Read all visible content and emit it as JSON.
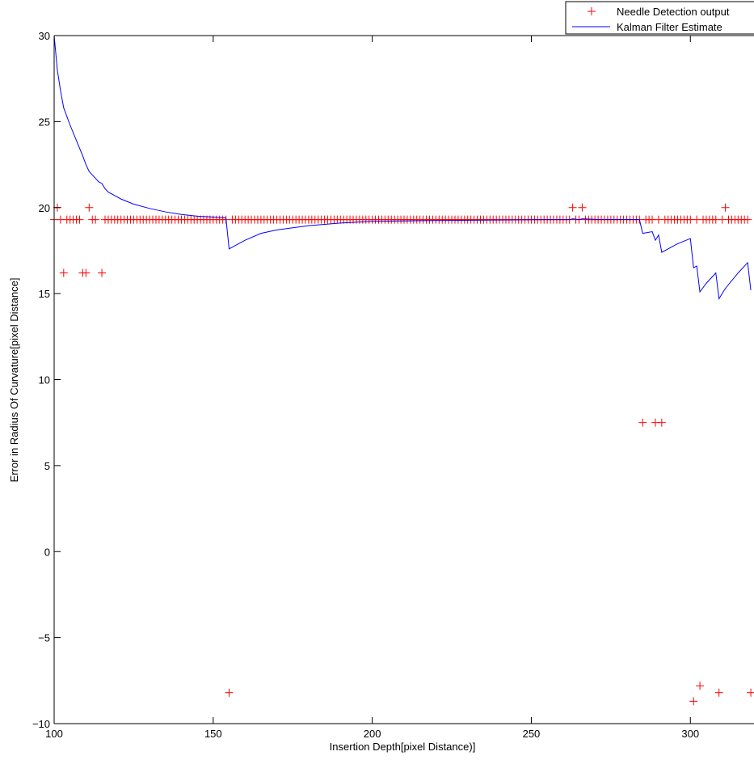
{
  "chart_data": {
    "type": "line",
    "title": "",
    "xlabel": "Insertion Depth[pixel Distance)]",
    "ylabel": "Error in Radius Of Curvature[pixel Distance]",
    "xlim": [
      100,
      320
    ],
    "ylim": [
      -10,
      30
    ],
    "xticks": [
      100,
      150,
      200,
      250,
      300
    ],
    "yticks": [
      -10,
      -5,
      0,
      5,
      10,
      15,
      20,
      25,
      30
    ],
    "grid": false,
    "legend_location": "top-right",
    "series": [
      {
        "name": "Needle Detection output",
        "style": "markers",
        "marker": "+",
        "color": "#ff0000",
        "points": [
          [
            100,
            19.3
          ],
          [
            101,
            20.0
          ],
          [
            102,
            19.3
          ],
          [
            103,
            16.2
          ],
          [
            104,
            19.3
          ],
          [
            105,
            19.3
          ],
          [
            106,
            19.3
          ],
          [
            107,
            19.3
          ],
          [
            108,
            19.3
          ],
          [
            109,
            16.2
          ],
          [
            110,
            16.2
          ],
          [
            111,
            20.0
          ],
          [
            112,
            19.3
          ],
          [
            113,
            19.3
          ],
          [
            115,
            16.2
          ],
          [
            116,
            19.3
          ],
          [
            117,
            19.3
          ],
          [
            118,
            19.3
          ],
          [
            119,
            19.3
          ],
          [
            120,
            19.3
          ],
          [
            121,
            19.3
          ],
          [
            122,
            19.3
          ],
          [
            123,
            19.3
          ],
          [
            124,
            19.3
          ],
          [
            125,
            19.3
          ],
          [
            126,
            19.3
          ],
          [
            127,
            19.3
          ],
          [
            128,
            19.3
          ],
          [
            129,
            19.3
          ],
          [
            130,
            19.3
          ],
          [
            131,
            19.3
          ],
          [
            132,
            19.3
          ],
          [
            133,
            19.3
          ],
          [
            134,
            19.3
          ],
          [
            135,
            19.3
          ],
          [
            136,
            19.3
          ],
          [
            137,
            19.3
          ],
          [
            138,
            19.3
          ],
          [
            139,
            19.3
          ],
          [
            140,
            19.3
          ],
          [
            141,
            19.3
          ],
          [
            142,
            19.3
          ],
          [
            143,
            19.3
          ],
          [
            144,
            19.3
          ],
          [
            145,
            19.3
          ],
          [
            146,
            19.3
          ],
          [
            147,
            19.3
          ],
          [
            148,
            19.3
          ],
          [
            149,
            19.3
          ],
          [
            150,
            19.3
          ],
          [
            151,
            19.3
          ],
          [
            152,
            19.3
          ],
          [
            153,
            19.3
          ],
          [
            154,
            19.3
          ],
          [
            155,
            -8.2
          ],
          [
            156,
            19.3
          ],
          [
            157,
            19.3
          ],
          [
            158,
            19.3
          ],
          [
            159,
            19.3
          ],
          [
            160,
            19.3
          ],
          [
            161,
            19.3
          ],
          [
            162,
            19.3
          ],
          [
            163,
            19.3
          ],
          [
            164,
            19.3
          ],
          [
            165,
            19.3
          ],
          [
            166,
            19.3
          ],
          [
            167,
            19.3
          ],
          [
            168,
            19.3
          ],
          [
            169,
            19.3
          ],
          [
            170,
            19.3
          ],
          [
            171,
            19.3
          ],
          [
            172,
            19.3
          ],
          [
            173,
            19.3
          ],
          [
            174,
            19.3
          ],
          [
            175,
            19.3
          ],
          [
            176,
            19.3
          ],
          [
            177,
            19.3
          ],
          [
            178,
            19.3
          ],
          [
            179,
            19.3
          ],
          [
            180,
            19.3
          ],
          [
            181,
            19.3
          ],
          [
            182,
            19.3
          ],
          [
            183,
            19.3
          ],
          [
            184,
            19.3
          ],
          [
            185,
            19.3
          ],
          [
            186,
            19.3
          ],
          [
            187,
            19.3
          ],
          [
            188,
            19.3
          ],
          [
            189,
            19.3
          ],
          [
            190,
            19.3
          ],
          [
            191,
            19.3
          ],
          [
            192,
            19.3
          ],
          [
            193,
            19.3
          ],
          [
            194,
            19.3
          ],
          [
            195,
            19.3
          ],
          [
            196,
            19.3
          ],
          [
            197,
            19.3
          ],
          [
            198,
            19.3
          ],
          [
            199,
            19.3
          ],
          [
            200,
            19.3
          ],
          [
            201,
            19.3
          ],
          [
            202,
            19.3
          ],
          [
            203,
            19.3
          ],
          [
            204,
            19.3
          ],
          [
            205,
            19.3
          ],
          [
            206,
            19.3
          ],
          [
            207,
            19.3
          ],
          [
            208,
            19.3
          ],
          [
            209,
            19.3
          ],
          [
            210,
            19.3
          ],
          [
            211,
            19.3
          ],
          [
            212,
            19.3
          ],
          [
            213,
            19.3
          ],
          [
            214,
            19.3
          ],
          [
            215,
            19.3
          ],
          [
            216,
            19.3
          ],
          [
            217,
            19.3
          ],
          [
            218,
            19.3
          ],
          [
            219,
            19.3
          ],
          [
            220,
            19.3
          ],
          [
            221,
            19.3
          ],
          [
            222,
            19.3
          ],
          [
            223,
            19.3
          ],
          [
            224,
            19.3
          ],
          [
            225,
            19.3
          ],
          [
            226,
            19.3
          ],
          [
            227,
            19.3
          ],
          [
            228,
            19.3
          ],
          [
            229,
            19.3
          ],
          [
            230,
            19.3
          ],
          [
            231,
            19.3
          ],
          [
            232,
            19.3
          ],
          [
            233,
            19.3
          ],
          [
            234,
            19.3
          ],
          [
            235,
            19.3
          ],
          [
            236,
            19.3
          ],
          [
            237,
            19.3
          ],
          [
            238,
            19.3
          ],
          [
            239,
            19.3
          ],
          [
            240,
            19.3
          ],
          [
            241,
            19.3
          ],
          [
            242,
            19.3
          ],
          [
            243,
            19.3
          ],
          [
            244,
            19.3
          ],
          [
            245,
            19.3
          ],
          [
            246,
            19.3
          ],
          [
            247,
            19.3
          ],
          [
            248,
            19.3
          ],
          [
            249,
            19.3
          ],
          [
            250,
            19.3
          ],
          [
            251,
            19.3
          ],
          [
            252,
            19.3
          ],
          [
            253,
            19.3
          ],
          [
            254,
            19.3
          ],
          [
            255,
            19.3
          ],
          [
            256,
            19.3
          ],
          [
            257,
            19.3
          ],
          [
            258,
            19.3
          ],
          [
            259,
            19.3
          ],
          [
            260,
            19.3
          ],
          [
            261,
            19.3
          ],
          [
            262,
            19.3
          ],
          [
            263,
            20.0
          ],
          [
            264,
            19.3
          ],
          [
            265,
            19.3
          ],
          [
            266,
            20.0
          ],
          [
            267,
            19.3
          ],
          [
            268,
            19.3
          ],
          [
            269,
            19.3
          ],
          [
            270,
            19.3
          ],
          [
            271,
            19.3
          ],
          [
            272,
            19.3
          ],
          [
            273,
            19.3
          ],
          [
            274,
            19.3
          ],
          [
            275,
            19.3
          ],
          [
            276,
            19.3
          ],
          [
            277,
            19.3
          ],
          [
            278,
            19.3
          ],
          [
            279,
            19.3
          ],
          [
            280,
            19.3
          ],
          [
            281,
            19.3
          ],
          [
            282,
            19.3
          ],
          [
            283,
            19.3
          ],
          [
            284,
            19.3
          ],
          [
            285,
            7.5
          ],
          [
            286,
            19.3
          ],
          [
            287,
            19.3
          ],
          [
            288,
            19.3
          ],
          [
            289,
            7.5
          ],
          [
            290,
            19.3
          ],
          [
            291,
            7.5
          ],
          [
            292,
            19.3
          ],
          [
            293,
            19.3
          ],
          [
            294,
            19.3
          ],
          [
            295,
            19.3
          ],
          [
            296,
            19.3
          ],
          [
            297,
            19.3
          ],
          [
            298,
            19.3
          ],
          [
            299,
            19.3
          ],
          [
            300,
            19.3
          ],
          [
            301,
            -8.7
          ],
          [
            302,
            19.3
          ],
          [
            303,
            -7.8
          ],
          [
            304,
            19.3
          ],
          [
            305,
            19.3
          ],
          [
            306,
            19.3
          ],
          [
            307,
            19.3
          ],
          [
            308,
            19.3
          ],
          [
            309,
            -8.2
          ],
          [
            310,
            19.3
          ],
          [
            311,
            20.0
          ],
          [
            312,
            19.3
          ],
          [
            313,
            19.3
          ],
          [
            314,
            19.3
          ],
          [
            315,
            19.3
          ],
          [
            316,
            19.3
          ],
          [
            317,
            19.3
          ],
          [
            318,
            19.3
          ],
          [
            319,
            -8.2
          ]
        ]
      },
      {
        "name": "Kalman Filter Estimate",
        "style": "line",
        "color": "#0000ff",
        "points": [
          [
            100,
            30.0
          ],
          [
            101,
            28.0
          ],
          [
            102,
            26.8
          ],
          [
            103,
            25.8
          ],
          [
            105,
            24.8
          ],
          [
            107,
            23.9
          ],
          [
            109,
            23.0
          ],
          [
            110,
            22.5
          ],
          [
            111,
            22.1
          ],
          [
            112,
            21.9
          ],
          [
            113,
            21.7
          ],
          [
            114,
            21.5
          ],
          [
            115,
            21.4
          ],
          [
            116,
            21.1
          ],
          [
            117,
            20.9
          ],
          [
            119,
            20.7
          ],
          [
            121,
            20.5
          ],
          [
            125,
            20.2
          ],
          [
            130,
            19.95
          ],
          [
            135,
            19.75
          ],
          [
            140,
            19.6
          ],
          [
            145,
            19.5
          ],
          [
            150,
            19.45
          ],
          [
            154,
            19.4
          ],
          [
            155,
            17.6
          ],
          [
            157,
            17.8
          ],
          [
            160,
            18.1
          ],
          [
            165,
            18.5
          ],
          [
            170,
            18.7
          ],
          [
            180,
            18.95
          ],
          [
            190,
            19.1
          ],
          [
            200,
            19.2
          ],
          [
            220,
            19.25
          ],
          [
            240,
            19.28
          ],
          [
            255,
            19.3
          ],
          [
            262,
            19.3
          ],
          [
            263,
            19.35
          ],
          [
            265,
            19.3
          ],
          [
            266,
            19.35
          ],
          [
            270,
            19.32
          ],
          [
            284,
            19.3
          ],
          [
            285,
            18.5
          ],
          [
            288,
            18.6
          ],
          [
            289,
            18.1
          ],
          [
            290,
            18.4
          ],
          [
            291,
            17.4
          ],
          [
            293,
            17.6
          ],
          [
            296,
            17.9
          ],
          [
            300,
            18.2
          ],
          [
            301,
            16.5
          ],
          [
            302,
            16.6
          ],
          [
            303,
            15.1
          ],
          [
            305,
            15.6
          ],
          [
            308,
            16.2
          ],
          [
            309,
            14.7
          ],
          [
            311,
            15.3
          ],
          [
            315,
            16.2
          ],
          [
            318,
            16.8
          ],
          [
            319,
            15.2
          ]
        ]
      }
    ]
  }
}
